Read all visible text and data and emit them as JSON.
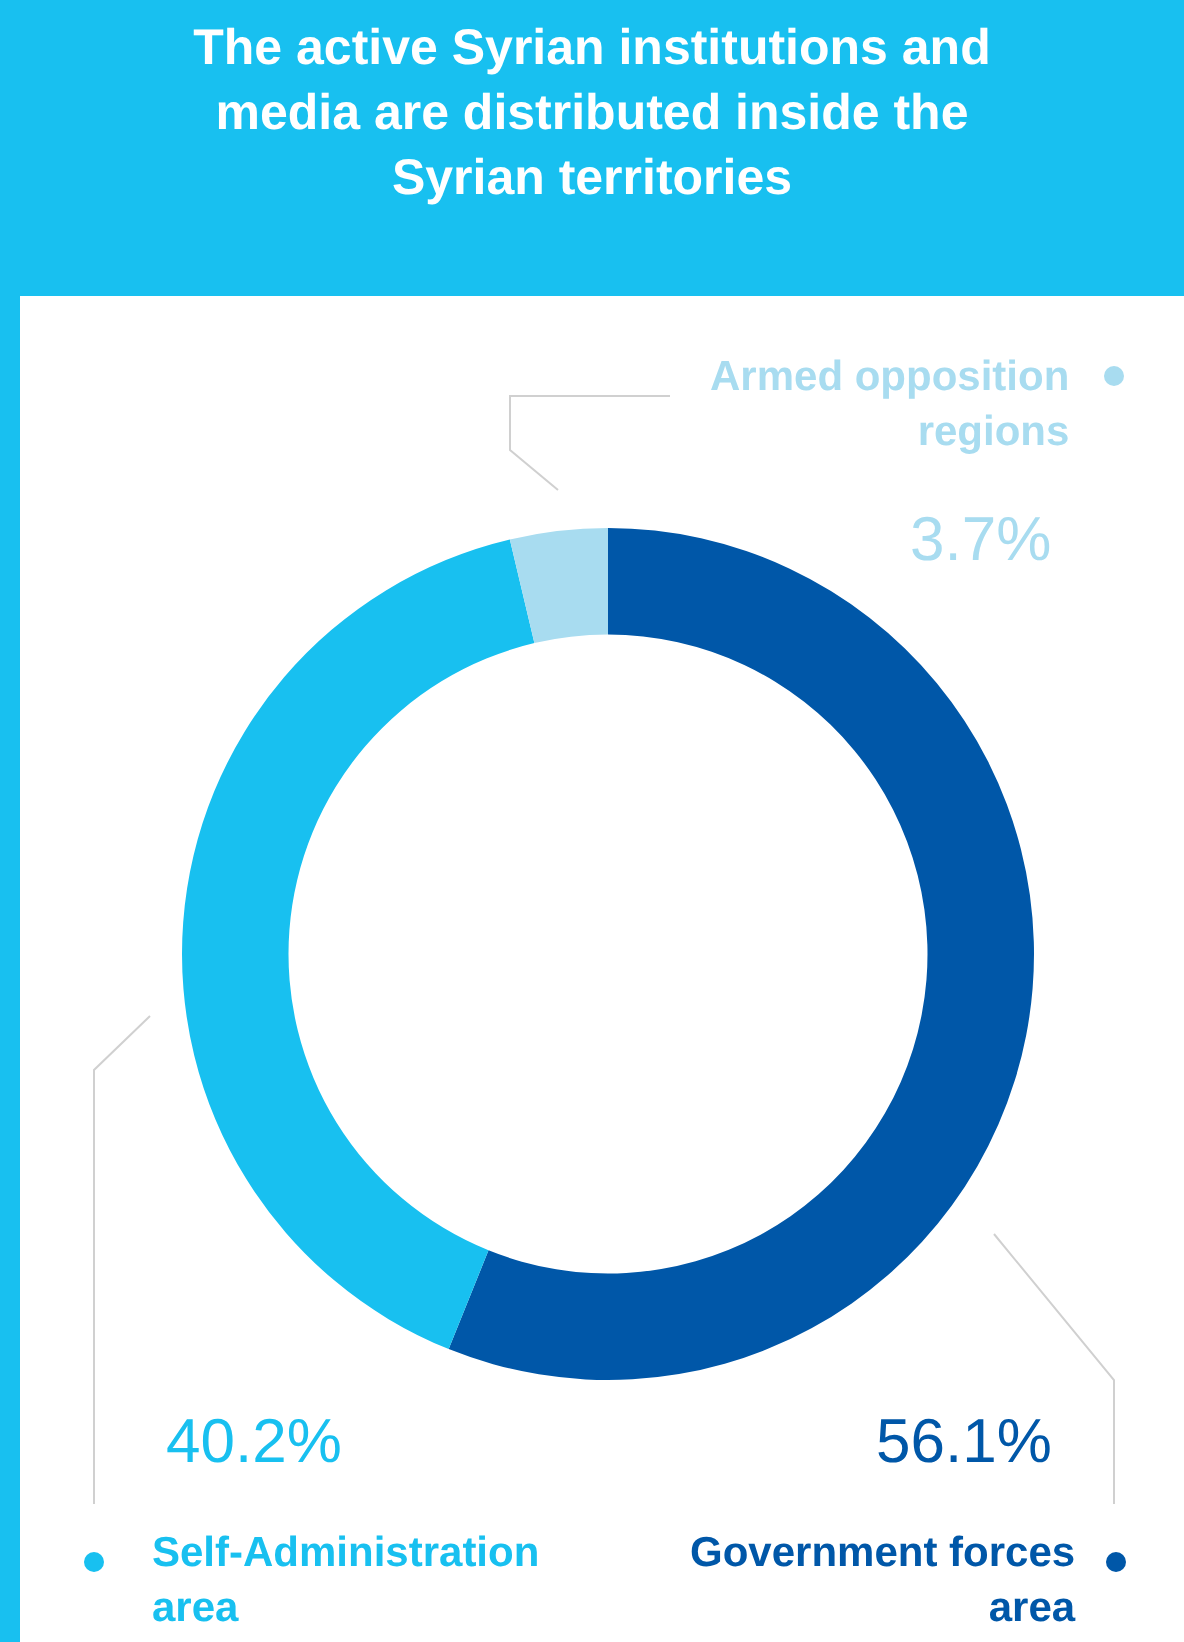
{
  "chart_data": {
    "type": "donut",
    "title": "The active Syrian institutions and\nmedia are distributed inside the\nSyrian territories",
    "categories": [
      "Government forces\narea",
      "Self-Administration\narea",
      "Armed opposition\nregions"
    ],
    "values": [
      56.1,
      40.2,
      3.7
    ],
    "colors": [
      "#0057a8",
      "#18c0f0",
      "#a8dcf0"
    ],
    "value_labels": [
      "56.1%",
      "40.2%",
      "3.7%"
    ],
    "legend": "bottom"
  }
}
